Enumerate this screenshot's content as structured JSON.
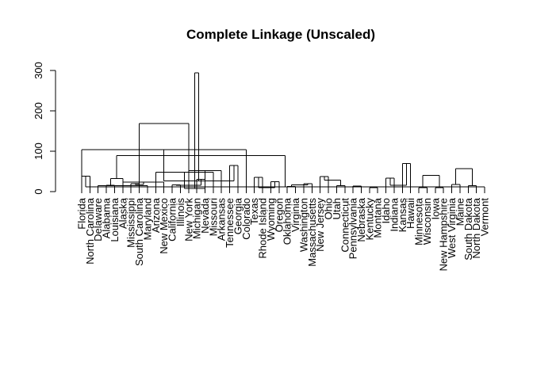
{
  "chart_data": {
    "type": "dendrogram",
    "title": "Complete Linkage (Unscaled)",
    "xlabel": "",
    "ylabel": "",
    "ylim": [
      0,
      300
    ],
    "yticks": [
      0,
      100,
      200,
      300
    ],
    "line_color": "#000000",
    "leaves": [
      "Florida",
      "North Carolina",
      "Delaware",
      "Alabama",
      "Louisiana",
      "Alaska",
      "Mississippi",
      "South Carolina",
      "Maryland",
      "Arizona",
      "New Mexico",
      "California",
      "Illinois",
      "New York",
      "Michigan",
      "Nevada",
      "Missouri",
      "Arkansas",
      "Tennessee",
      "Georgia",
      "Colorado",
      "Texas",
      "Rhode Island",
      "Wyoming",
      "Oregon",
      "Oklahoma",
      "Virginia",
      "Washington",
      "Massachusetts",
      "New Jersey",
      "Ohio",
      "Utah",
      "Connecticut",
      "Pennsylvania",
      "Nebraska",
      "Kentucky",
      "Montana",
      "Idaho",
      "Indiana",
      "Kansas",
      "Hawaii",
      "Minnesota",
      "Wisconsin",
      "Iowa",
      "New Hampshire",
      "West Virginia",
      "Maine",
      "South Dakota",
      "North Dakota",
      "Vermont"
    ],
    "merges": [
      [
        0,
        1,
        38
      ],
      [
        3,
        4,
        16
      ],
      [
        2,
        8,
        15
      ],
      [
        10,
        5,
        24
      ],
      [
        6,
        7,
        20
      ],
      [
        11,
        12,
        17
      ],
      [
        15,
        14,
        30
      ],
      [
        16,
        9,
        48
      ],
      [
        13,
        17,
        52
      ],
      [
        18,
        19,
        65
      ],
      [
        -1,
        20,
        104
      ],
      [
        21,
        22,
        35
      ],
      [
        23,
        24,
        25
      ],
      [
        25,
        26,
        13
      ],
      [
        27,
        28,
        20
      ],
      [
        29,
        30,
        37
      ],
      [
        31,
        32,
        15
      ],
      [
        33,
        34,
        14
      ],
      [
        35,
        36,
        10
      ],
      [
        37,
        38,
        33
      ],
      [
        39,
        40,
        70
      ],
      [
        41,
        42,
        10
      ],
      [
        43,
        44,
        10
      ],
      [
        45,
        46,
        18
      ],
      [
        47,
        48,
        15
      ],
      [
        49,
        50,
        12
      ],
      [
        51,
        52,
        32
      ],
      [
        53,
        54,
        18
      ],
      [
        55,
        56,
        16
      ],
      [
        57,
        58,
        8
      ],
      [
        59,
        60,
        26
      ],
      [
        61,
        62,
        10
      ],
      [
        63,
        64,
        17
      ],
      [
        65,
        66,
        28
      ],
      [
        67,
        68,
        12
      ],
      [
        69,
        70,
        16
      ],
      [
        71,
        72,
        40
      ],
      [
        73,
        74,
        57
      ],
      [
        75,
        76,
        89
      ],
      [
        77,
        78,
        169
      ],
      [
        79,
        80,
        294
      ]
    ]
  }
}
